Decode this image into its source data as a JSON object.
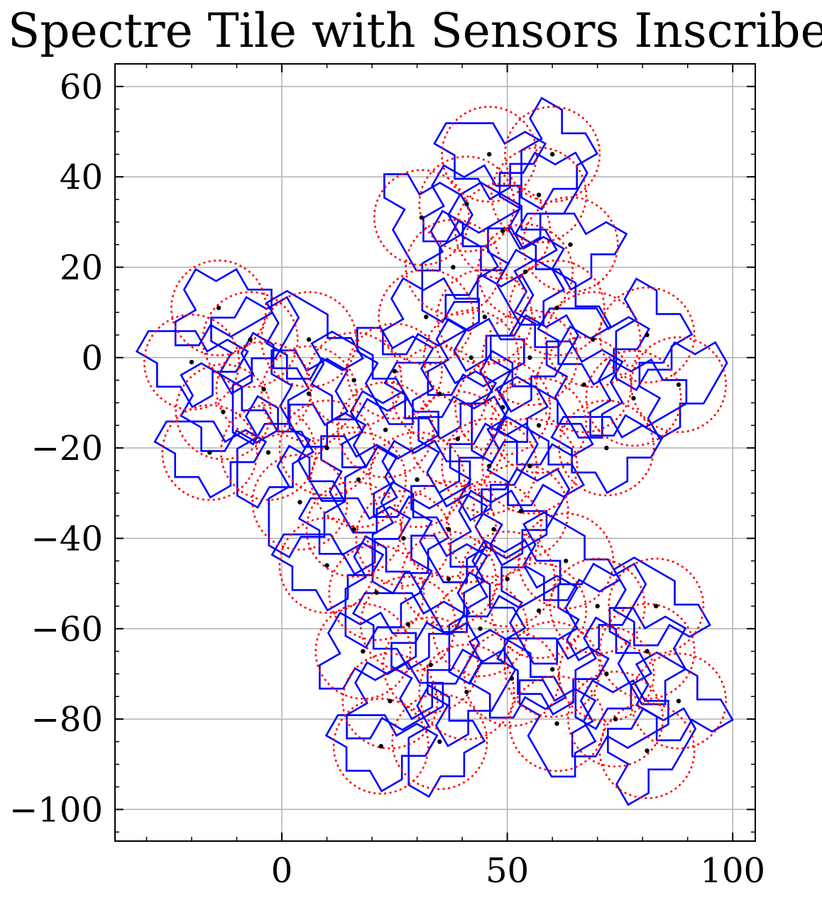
{
  "chart_data": {
    "type": "scatter",
    "title": "Spectre Tile with Sensors Inscribed",
    "xlabel": "",
    "ylabel": "",
    "xlim": [
      -37,
      105
    ],
    "ylim": [
      -107,
      65
    ],
    "xticks": [
      0,
      50,
      100
    ],
    "xtick_labels": [
      "0",
      "50",
      "100"
    ],
    "yticks": [
      60,
      40,
      20,
      0,
      -20,
      -40,
      -60,
      -80,
      -100
    ],
    "ytick_labels": [
      "60",
      "40",
      "20",
      "0",
      "−20",
      "−40",
      "−60",
      "−80",
      "−100"
    ],
    "grid": true,
    "colors": {
      "tile": "#0000ff",
      "sensor_circle": "#ff0000",
      "sensor_center": "#000000",
      "grid": "#b0b0b0"
    },
    "sensor_radius": 10.5,
    "sensors": [
      [
        46,
        45
      ],
      [
        60,
        45
      ],
      [
        31,
        31
      ],
      [
        41,
        34
      ],
      [
        57,
        36
      ],
      [
        49,
        28
      ],
      [
        64,
        25
      ],
      [
        38,
        20
      ],
      [
        54,
        19
      ],
      [
        -14,
        11
      ],
      [
        -7,
        4
      ],
      [
        6,
        4
      ],
      [
        -20,
        -1
      ],
      [
        -4,
        -7
      ],
      [
        6,
        -8
      ],
      [
        32,
        9
      ],
      [
        45,
        9
      ],
      [
        61,
        11
      ],
      [
        69,
        4
      ],
      [
        81,
        5
      ],
      [
        25,
        -3
      ],
      [
        42,
        0
      ],
      [
        55,
        0
      ],
      [
        16,
        -5
      ],
      [
        35,
        -8
      ],
      [
        49,
        -11
      ],
      [
        67,
        -6
      ],
      [
        78,
        -9
      ],
      [
        88,
        -6
      ],
      [
        -13,
        -12
      ],
      [
        -16,
        -21
      ],
      [
        -3,
        -21
      ],
      [
        10,
        -20
      ],
      [
        23,
        -16
      ],
      [
        39,
        -18
      ],
      [
        57,
        -15
      ],
      [
        72,
        -20
      ],
      [
        4,
        -32
      ],
      [
        17,
        -27
      ],
      [
        30,
        -27
      ],
      [
        46,
        -24
      ],
      [
        55,
        -24
      ],
      [
        16,
        -38
      ],
      [
        27,
        -40
      ],
      [
        37,
        -38
      ],
      [
        47,
        -38
      ],
      [
        53,
        -34
      ],
      [
        63,
        -45
      ],
      [
        10,
        -46
      ],
      [
        21,
        -52
      ],
      [
        37,
        -49
      ],
      [
        50,
        -49
      ],
      [
        70,
        -55
      ],
      [
        83,
        -55
      ],
      [
        28,
        -59
      ],
      [
        44,
        -60
      ],
      [
        57,
        -56
      ],
      [
        18,
        -65
      ],
      [
        33,
        -68
      ],
      [
        51,
        -71
      ],
      [
        60,
        -69
      ],
      [
        72,
        -70
      ],
      [
        81,
        -65
      ],
      [
        24,
        -76
      ],
      [
        41,
        -74
      ],
      [
        88,
        -76
      ],
      [
        22,
        -86
      ],
      [
        35,
        -85
      ],
      [
        61,
        -81
      ],
      [
        74,
        -80
      ],
      [
        81,
        -87
      ]
    ]
  }
}
